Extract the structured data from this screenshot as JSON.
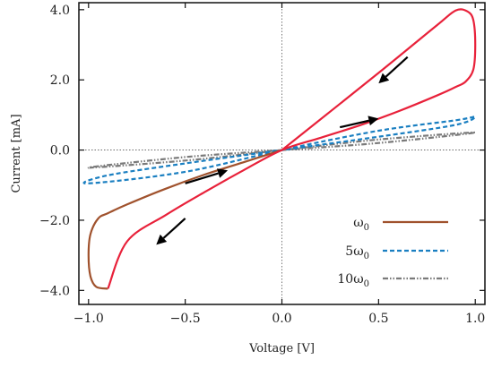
{
  "chart_data": {
    "type": "line",
    "xlabel": "Voltage [V]",
    "ylabel": "Current [mA]",
    "xlim": [
      -1.05,
      1.05
    ],
    "ylim": [
      -4.4,
      4.2
    ],
    "x_ticks": [
      -1.0,
      -0.5,
      0.0,
      0.5,
      1.0
    ],
    "x_tick_labels": [
      "−1.0",
      "−0.5",
      "0.0",
      "0.5",
      "1.0"
    ],
    "y_ticks": [
      -4.0,
      -2.0,
      0.0,
      2.0,
      4.0
    ],
    "y_tick_labels": [
      "−4.0",
      "−2.0",
      "0.0",
      "2.0",
      "4.0"
    ],
    "zero_lines": true,
    "legend_position": "bottom-right",
    "series": [
      {
        "name": "ω0",
        "legend_main": "ω",
        "legend_sub": "0",
        "style": "solid",
        "color_upper": "#e8213a",
        "color_lower": "#a0522d",
        "upper_branch": {
          "x": [
            0.0,
            0.5,
            0.8,
            0.9,
            0.96,
            0.99,
            1.0,
            0.99,
            0.95,
            0.9,
            0.8,
            0.6,
            0.4,
            0.2,
            0.0,
            -0.2,
            -0.4,
            -0.6,
            -0.8,
            -0.9
          ],
          "y": [
            0.0,
            2.2,
            3.55,
            3.98,
            3.95,
            3.7,
            3.0,
            2.3,
            1.95,
            1.8,
            1.55,
            1.1,
            0.7,
            0.35,
            0.0,
            -0.58,
            -1.2,
            -1.85,
            -2.6,
            -3.95
          ]
        },
        "lower_branch": {
          "x": [
            -0.9,
            -0.96,
            -0.99,
            -1.0,
            -0.99,
            -0.95,
            -0.9,
            -0.8,
            -0.6,
            -0.4,
            -0.2,
            0.0
          ],
          "y": [
            -3.95,
            -3.9,
            -3.6,
            -3.0,
            -2.4,
            -1.95,
            -1.8,
            -1.55,
            -1.1,
            -0.7,
            -0.35,
            0.0
          ]
        }
      },
      {
        "name": "5ω0",
        "legend_main": "5ω",
        "legend_sub": "0",
        "style": "dashed",
        "color": "#1a7fc1",
        "loop": {
          "x": [
            -1.0,
            -0.5,
            0.0,
            0.5,
            0.9,
            1.0,
            0.9,
            0.5,
            0.0,
            -0.5,
            -0.9,
            -1.0
          ],
          "y": [
            -0.95,
            -0.62,
            0.0,
            0.55,
            0.85,
            0.95,
            0.72,
            0.38,
            0.0,
            -0.38,
            -0.72,
            -0.95
          ]
        }
      },
      {
        "name": "10ω0",
        "legend_main": "10ω",
        "legend_sub": "0",
        "style": "dashdotdot",
        "color": "#7a7a7a",
        "loop": {
          "x": [
            -1.0,
            -0.5,
            0.0,
            0.5,
            1.0,
            0.5,
            0.0,
            -0.5,
            -1.0
          ],
          "y": [
            -0.5,
            -0.3,
            0.0,
            0.3,
            0.5,
            0.2,
            0.0,
            -0.2,
            -0.5
          ]
        }
      }
    ],
    "arrows": [
      {
        "from": [
          0.65,
          2.65
        ],
        "to": [
          0.5,
          1.9
        ]
      },
      {
        "from": [
          0.3,
          0.65
        ],
        "to": [
          0.5,
          0.9
        ]
      },
      {
        "from": [
          -0.5,
          -0.95
        ],
        "to": [
          -0.28,
          -0.58
        ]
      },
      {
        "from": [
          -0.5,
          -1.95
        ],
        "to": [
          -0.65,
          -2.7
        ]
      }
    ]
  }
}
